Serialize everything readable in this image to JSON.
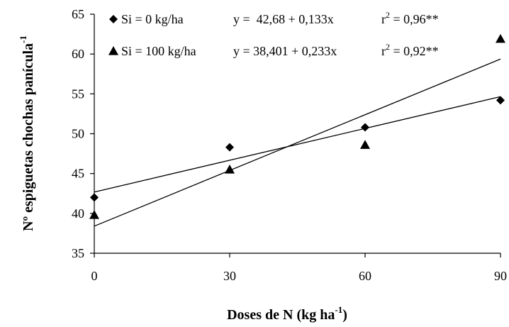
{
  "chart_data": {
    "type": "scatter",
    "x": [
      0,
      30,
      60,
      90
    ],
    "xlabel": "Doses de N (kg ha",
    "xlabel_sup": "-1",
    "xlabel_end": ")",
    "ylabel": "Nº espiguetas chochas panícula",
    "ylabel_sup": "-1",
    "xlim": [
      0,
      90
    ],
    "ylim": [
      35,
      65
    ],
    "xticks": [
      0,
      30,
      60,
      90
    ],
    "yticks": [
      35,
      40,
      45,
      50,
      55,
      60,
      65
    ],
    "grid": false,
    "legend_position": "top-left",
    "series": [
      {
        "name": "Si = 0 kg/ha",
        "marker": "diamond",
        "values": [
          42.0,
          48.3,
          50.8,
          54.2
        ],
        "fit": {
          "intercept": 42.68,
          "slope": 0.133
        },
        "equation": "y =  42,68 + 0,133x",
        "r2_prefix": "r",
        "r2_sup": "2",
        "r2_value": " = 0,96**"
      },
      {
        "name": "Si = 100 kg/ha",
        "marker": "triangle",
        "values": [
          39.8,
          45.5,
          48.6,
          61.9
        ],
        "fit": {
          "intercept": 38.401,
          "slope": 0.233
        },
        "equation": "y = 38,401 + 0,233x",
        "r2_prefix": "r",
        "r2_sup": "2",
        "r2_value": " = 0,92**"
      }
    ]
  }
}
